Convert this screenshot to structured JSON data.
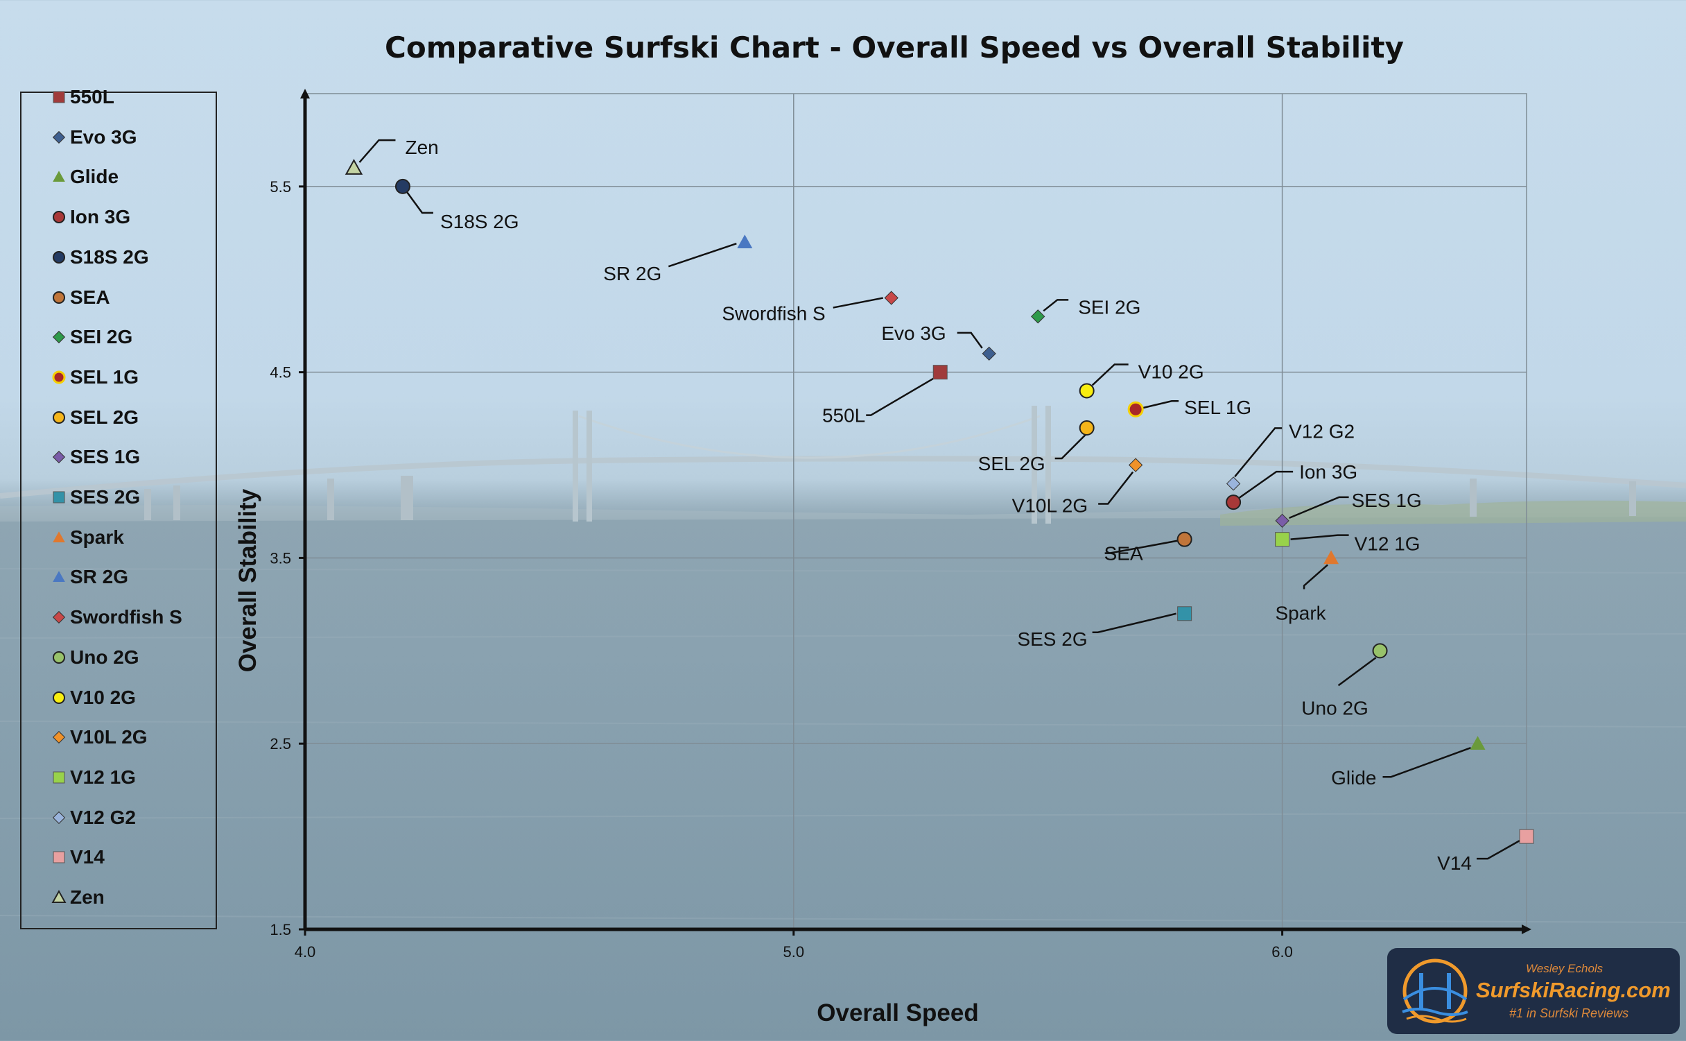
{
  "chart_data": {
    "type": "scatter",
    "title": "Comparative Surfski Chart - Overall Speed vs Overall Stability",
    "xlabel": "Overall Speed",
    "ylabel": "Overall Stability",
    "xlim": [
      4.0,
      6.5
    ],
    "ylim": [
      1.5,
      6.0
    ],
    "x_ticks": [
      "4.0",
      "5.0",
      "6.0"
    ],
    "y_ticks": [
      "1.5",
      "2.5",
      "3.5",
      "4.5",
      "5.5"
    ],
    "grid": true,
    "legend_position": "left",
    "series": [
      {
        "name": "550L",
        "x": 5.3,
        "y": 4.5,
        "marker": "square",
        "color": "#a03b3b"
      },
      {
        "name": "Evo 3G",
        "x": 5.4,
        "y": 4.6,
        "marker": "diamond",
        "color": "#3e5f8f"
      },
      {
        "name": "Glide",
        "x": 6.4,
        "y": 2.5,
        "marker": "triangle",
        "color": "#6a9a3a"
      },
      {
        "name": "Ion 3G",
        "x": 5.9,
        "y": 3.8,
        "marker": "circle",
        "color": "#a83838"
      },
      {
        "name": "S18S 2G",
        "x": 4.2,
        "y": 5.5,
        "marker": "circle",
        "color": "#243b63"
      },
      {
        "name": "SEA",
        "x": 5.8,
        "y": 3.6,
        "marker": "circle",
        "color": "#c0753a"
      },
      {
        "name": "SEI 2G",
        "x": 5.5,
        "y": 4.8,
        "marker": "diamond",
        "color": "#2e9a4a"
      },
      {
        "name": "SEL 1G",
        "x": 5.7,
        "y": 4.3,
        "marker": "circle",
        "color": "#a82828",
        "edge": "#f5d000"
      },
      {
        "name": "SEL 2G",
        "x": 5.6,
        "y": 4.2,
        "marker": "circle",
        "color": "#f5b51a"
      },
      {
        "name": "SES 1G",
        "x": 6.0,
        "y": 3.7,
        "marker": "diamond",
        "color": "#7a5ca8"
      },
      {
        "name": "SES 2G",
        "x": 5.8,
        "y": 3.2,
        "marker": "square",
        "color": "#3392a8"
      },
      {
        "name": "Spark",
        "x": 6.1,
        "y": 3.5,
        "marker": "triangle",
        "color": "#e0782e"
      },
      {
        "name": "SR 2G",
        "x": 4.9,
        "y": 5.2,
        "marker": "triangle",
        "color": "#4a78c2"
      },
      {
        "name": "Swordfish S",
        "x": 5.2,
        "y": 4.9,
        "marker": "diamond",
        "color": "#c84848"
      },
      {
        "name": "Uno 2G",
        "x": 6.2,
        "y": 3.0,
        "marker": "circle",
        "color": "#98c26a"
      },
      {
        "name": "V10 2G",
        "x": 5.6,
        "y": 4.4,
        "marker": "circle",
        "color": "#f8ee10"
      },
      {
        "name": "V10L 2G",
        "x": 5.7,
        "y": 4.0,
        "marker": "diamond",
        "color": "#f0922a"
      },
      {
        "name": "V12 1G",
        "x": 6.0,
        "y": 3.6,
        "marker": "square",
        "color": "#98d24a"
      },
      {
        "name": "V12 G2",
        "x": 5.9,
        "y": 3.9,
        "marker": "diamond",
        "color": "#9ab4dc"
      },
      {
        "name": "V14",
        "x": 6.5,
        "y": 2.0,
        "marker": "square",
        "color": "#e8a0a0"
      },
      {
        "name": "Zen",
        "x": 4.1,
        "y": 5.6,
        "marker": "triangle",
        "color": "#c4d4a4"
      }
    ]
  },
  "logo": {
    "author": "Wesley Echols",
    "brand": "SurfskiRacing.com",
    "tagline": "#1 in Surfski Reviews"
  }
}
